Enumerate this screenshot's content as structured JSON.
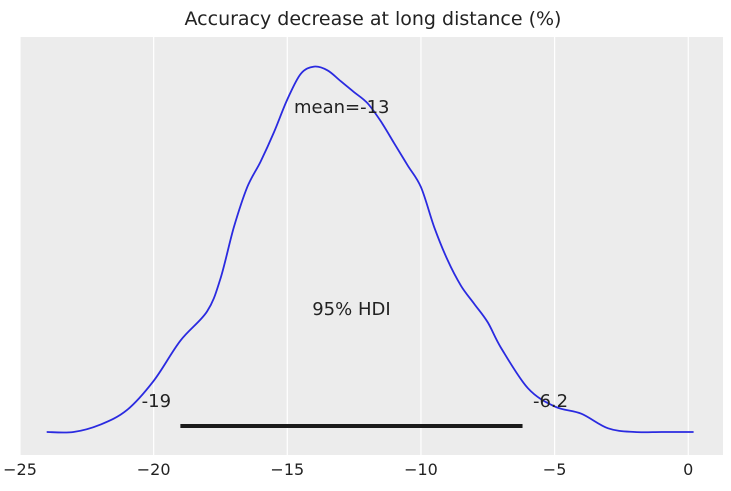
{
  "chart_data": {
    "type": "area",
    "title": "Accuracy decrease at long distance (%)",
    "xlabel": "",
    "ylabel": "",
    "xlim": [
      -25,
      1.3
    ],
    "ylim": [
      0,
      1.04
    ],
    "grid": true,
    "xticks": [
      -25,
      -20,
      -15,
      -10,
      -5,
      0
    ],
    "xtick_labels": [
      "−25",
      "−20",
      "−15",
      "−10",
      "−5",
      "0"
    ],
    "yticks_visible": false,
    "series": [
      {
        "x": [
          -24.0,
          -23.0,
          -22.0,
          -21.0,
          -20.0,
          -19.0,
          -18.0,
          -17.5,
          -17.0,
          -16.5,
          -16.0,
          -15.5,
          -15.0,
          -14.5,
          -14.0,
          -13.5,
          -13.0,
          -12.5,
          -12.0,
          -11.5,
          -11.0,
          -10.5,
          -10.0,
          -9.5,
          -9.0,
          -8.5,
          -8.0,
          -7.5,
          -7.0,
          -6.0,
          -5.0,
          -4.0,
          -3.0,
          -2.0,
          -1.0,
          0.0,
          0.2
        ],
        "y": [
          0.0,
          0.0,
          0.02,
          0.06,
          0.14,
          0.25,
          0.33,
          0.42,
          0.56,
          0.67,
          0.74,
          0.82,
          0.91,
          0.98,
          1.0,
          0.99,
          0.96,
          0.93,
          0.9,
          0.85,
          0.79,
          0.73,
          0.67,
          0.56,
          0.47,
          0.4,
          0.35,
          0.3,
          0.23,
          0.12,
          0.07,
          0.05,
          0.01,
          0.0,
          0.0,
          0.0,
          0.0
        ],
        "color": "#2a2ae0"
      }
    ],
    "annotations": {
      "mean_label": "mean=-13",
      "hdi_label": "95% HDI",
      "hdi_low": -19,
      "hdi_high": -6.2,
      "hdi_low_label": "-19",
      "hdi_high_label": "-6.2"
    },
    "background_color": "#ececec",
    "grid_color": "#ffffff"
  }
}
